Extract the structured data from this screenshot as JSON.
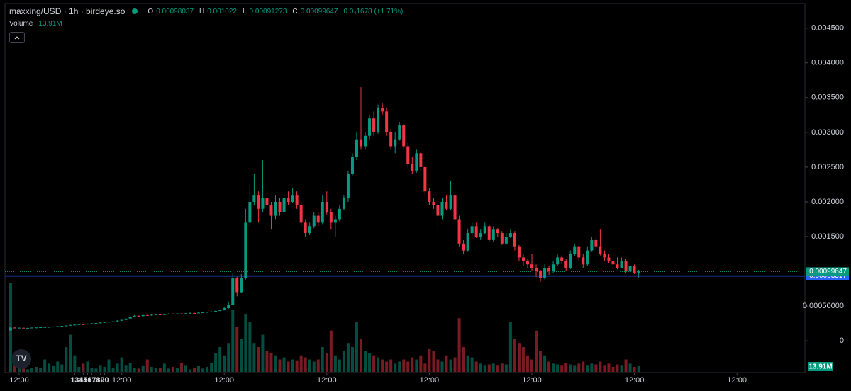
{
  "chart_data": {
    "type": "candlestick",
    "title": "maxxing/USD · 1h · birdeye.so",
    "legend_labels": {
      "open": "O",
      "high": "H",
      "low": "L",
      "close": "C"
    },
    "change_label": "0.0₄1678 (+1.71%)",
    "volume_title": "Volume",
    "volume_label": "13.91M",
    "up_color": "#089981",
    "down_color": "#f23645",
    "x": [
      -2,
      -1,
      0,
      1,
      2,
      3,
      4,
      5,
      6,
      7,
      8,
      9,
      10,
      11,
      12,
      13,
      14,
      15,
      16,
      17,
      18,
      19,
      20,
      21,
      22,
      23,
      24,
      25,
      26,
      27,
      28,
      29,
      30,
      31,
      32,
      33,
      34,
      35,
      36,
      37,
      38,
      39,
      40,
      41,
      42,
      43,
      44,
      45,
      46,
      47,
      48,
      49,
      50,
      51,
      52,
      53,
      54,
      55,
      56,
      57,
      58,
      59,
      60,
      61,
      62,
      63,
      64,
      65,
      66,
      67,
      68,
      69,
      70,
      71,
      72,
      73,
      74,
      75,
      76,
      77,
      78,
      79,
      80,
      81,
      82,
      83,
      84,
      85,
      86,
      87,
      88,
      89,
      90,
      91,
      92,
      93,
      94,
      95,
      96,
      97,
      98,
      99,
      100,
      101,
      102,
      103,
      104,
      105,
      106,
      107,
      108,
      109,
      110,
      111,
      112,
      113,
      114,
      115,
      116,
      117,
      118,
      119,
      120,
      121,
      122,
      123,
      124,
      125,
      126,
      127,
      128,
      129,
      130,
      131,
      132,
      133,
      134,
      135,
      136,
      137,
      138,
      139,
      140,
      141,
      142,
      143,
      144,
      145
    ],
    "open": [
      0.00015,
      0.00019,
      0.000185,
      0.000188,
      0.000184,
      0.000186,
      0.00019,
      0.000192,
      0.000195,
      0.000198,
      0.0002,
      0.000205,
      0.00021,
      0.000215,
      0.00022,
      0.000228,
      0.000232,
      0.000238,
      0.000235,
      0.000245,
      0.00025,
      0.000255,
      0.000262,
      0.00027,
      0.000275,
      0.00028,
      0.00029,
      0.0003,
      0.00032,
      0.000345,
      0.00036,
      0.000355,
      0.00037,
      0.000365,
      0.000375,
      0.00038,
      0.000372,
      0.000385,
      0.00039,
      0.000385,
      0.000392,
      0.000388,
      0.000395,
      0.0004,
      0.000398,
      0.000405,
      0.00041,
      0.000415,
      0.00042,
      0.00043,
      0.00044,
      0.00047,
      0.00052,
      0.0009,
      0.0007,
      0.0009,
      0.0017,
      0.002,
      0.0021,
      0.0019,
      0.00205,
      0.00195,
      0.0018,
      0.002,
      0.00185,
      0.00205,
      0.002,
      0.0021,
      0.00195,
      0.0017,
      0.00155,
      0.00165,
      0.0018,
      0.0017,
      0.002,
      0.00185,
      0.0017,
      0.00175,
      0.0019,
      0.00205,
      0.0024,
      0.00265,
      0.0029,
      0.0028,
      0.00295,
      0.0032,
      0.003,
      0.00335,
      0.0033,
      0.003,
      0.0028,
      0.0029,
      0.0031,
      0.0028,
      0.00255,
      0.00245,
      0.0027,
      0.0025,
      0.00215,
      0.002,
      0.00195,
      0.0018,
      0.002,
      0.0019,
      0.0021,
      0.00175,
      0.0014,
      0.0013,
      0.00155,
      0.00165,
      0.0015,
      0.00155,
      0.00165,
      0.00145,
      0.0016,
      0.00155,
      0.0014,
      0.0015,
      0.00155,
      0.00135,
      0.0012,
      0.00115,
      0.0011,
      0.00105,
      0.001,
      0.0009,
      0.00105,
      0.001,
      0.0011,
      0.0012,
      0.00115,
      0.00105,
      0.00125,
      0.00135,
      0.0012,
      0.0011,
      0.0013,
      0.00145,
      0.00135,
      0.00125,
      0.0012,
      0.00115,
      0.0011,
      0.00105,
      0.00115,
      0.001,
      0.00108,
      0.00098037
    ],
    "high": [
      0.0002,
      0.000195,
      0.000192,
      0.00019,
      0.000189,
      0.000193,
      0.000195,
      0.000198,
      0.0002,
      0.000204,
      0.000208,
      0.000212,
      0.000218,
      0.000224,
      0.000232,
      0.000236,
      0.000242,
      0.00024,
      0.000248,
      0.000255,
      0.000258,
      0.000266,
      0.000275,
      0.00028,
      0.000285,
      0.000295,
      0.000305,
      0.000326,
      0.00035,
      0.000372,
      0.000366,
      0.000376,
      0.000374,
      0.00038,
      0.000386,
      0.000384,
      0.00039,
      0.000396,
      0.000394,
      0.000398,
      0.000395,
      0.0004,
      0.000406,
      0.000404,
      0.00041,
      0.000414,
      0.00042,
      0.000426,
      0.000436,
      0.000448,
      0.00048,
      0.00056,
      0.00098,
      0.00092,
      0.00096,
      0.0019,
      0.00225,
      0.0024,
      0.00215,
      0.0026,
      0.00225,
      0.002,
      0.0021,
      0.00205,
      0.0021,
      0.00215,
      0.0022,
      0.00215,
      0.002,
      0.00175,
      0.0017,
      0.00185,
      0.00185,
      0.0021,
      0.00215,
      0.0019,
      0.0018,
      0.00195,
      0.0021,
      0.00245,
      0.0027,
      0.003,
      0.00365,
      0.003,
      0.00325,
      0.0033,
      0.0034,
      0.00342,
      0.00335,
      0.00305,
      0.003,
      0.00315,
      0.00312,
      0.00285,
      0.00265,
      0.00275,
      0.00272,
      0.00252,
      0.0022,
      0.00205,
      0.002,
      0.00205,
      0.0021,
      0.0023,
      0.00215,
      0.0018,
      0.00145,
      0.0016,
      0.0017,
      0.0017,
      0.0016,
      0.0017,
      0.00168,
      0.00165,
      0.00162,
      0.00158,
      0.00155,
      0.0016,
      0.00158,
      0.00138,
      0.00125,
      0.00118,
      0.00125,
      0.0011,
      0.00102,
      0.0011,
      0.00108,
      0.00115,
      0.00125,
      0.00123,
      0.00118,
      0.0013,
      0.0014,
      0.00138,
      0.00125,
      0.00135,
      0.0015,
      0.0015,
      0.0016,
      0.0013,
      0.00125,
      0.00118,
      0.0012,
      0.0012,
      0.00118,
      0.0011,
      0.0011,
      0.001022
    ],
    "low": [
      0.00014,
      0.00018,
      0.000182,
      0.00018,
      0.000182,
      0.000184,
      0.000188,
      0.00019,
      0.000193,
      0.000195,
      0.000198,
      0.000203,
      0.000208,
      0.000212,
      0.000218,
      0.000224,
      0.00023,
      0.00023,
      0.000233,
      0.000242,
      0.000248,
      0.000252,
      0.000258,
      0.000266,
      0.000272,
      0.000276,
      0.000286,
      0.000296,
      0.000316,
      0.00034,
      0.000348,
      0.00035,
      0.000358,
      0.00036,
      0.00037,
      0.000366,
      0.000368,
      0.00038,
      0.00038,
      0.000382,
      0.000383,
      0.000385,
      0.000392,
      0.000392,
      0.000395,
      0.000402,
      0.000406,
      0.000412,
      0.000416,
      0.000426,
      0.000436,
      0.000462,
      0.00051,
      0.00064,
      0.00069,
      0.00088,
      0.00165,
      0.00195,
      0.0017,
      0.00185,
      0.0019,
      0.0016,
      0.00175,
      0.0018,
      0.00182,
      0.00195,
      0.00198,
      0.0019,
      0.00165,
      0.0015,
      0.00152,
      0.00162,
      0.00165,
      0.00168,
      0.00182,
      0.0016,
      0.0015,
      0.00172,
      0.00188,
      0.002,
      0.00238,
      0.0026,
      0.00275,
      0.00275,
      0.0029,
      0.00295,
      0.00298,
      0.00325,
      0.00295,
      0.00275,
      0.0027,
      0.00288,
      0.00275,
      0.0025,
      0.0024,
      0.00242,
      0.00245,
      0.0021,
      0.00195,
      0.0019,
      0.0016,
      0.00175,
      0.00188,
      0.00188,
      0.0017,
      0.00135,
      0.00125,
      0.00128,
      0.0015,
      0.00148,
      0.00145,
      0.00153,
      0.00142,
      0.00143,
      0.0015,
      0.00138,
      0.00138,
      0.00148,
      0.0013,
      0.00115,
      0.00108,
      0.00105,
      0.001,
      0.00092,
      0.00085,
      0.00088,
      0.00095,
      0.00098,
      0.00108,
      0.0011,
      0.001,
      0.00103,
      0.00122,
      0.00115,
      0.00105,
      0.00108,
      0.00128,
      0.0013,
      0.00123,
      0.00115,
      0.00112,
      0.00105,
      0.00103,
      0.00104,
      0.00098,
      0.00099,
      0.00096,
      0.00091273
    ],
    "close": [
      0.00019,
      0.000185,
      0.000188,
      0.000184,
      0.000186,
      0.00019,
      0.000192,
      0.000195,
      0.000198,
      0.0002,
      0.000205,
      0.00021,
      0.000215,
      0.00022,
      0.000228,
      0.000232,
      0.000238,
      0.000235,
      0.000245,
      0.00025,
      0.000255,
      0.000262,
      0.00027,
      0.000275,
      0.00028,
      0.00029,
      0.0003,
      0.00032,
      0.000345,
      0.00036,
      0.000355,
      0.00037,
      0.000365,
      0.000375,
      0.00038,
      0.000372,
      0.000385,
      0.00039,
      0.000385,
      0.000392,
      0.000388,
      0.000395,
      0.0004,
      0.000398,
      0.000405,
      0.00041,
      0.000415,
      0.00042,
      0.00043,
      0.00044,
      0.00047,
      0.00052,
      0.0009,
      0.0007,
      0.0009,
      0.0017,
      0.002,
      0.0021,
      0.0019,
      0.00205,
      0.00195,
      0.0018,
      0.002,
      0.00185,
      0.00205,
      0.002,
      0.0021,
      0.00195,
      0.0017,
      0.00155,
      0.00165,
      0.0018,
      0.0017,
      0.002,
      0.00185,
      0.0017,
      0.00175,
      0.0019,
      0.00205,
      0.0024,
      0.00265,
      0.0029,
      0.0028,
      0.00295,
      0.0032,
      0.003,
      0.00335,
      0.0033,
      0.003,
      0.0028,
      0.0029,
      0.0031,
      0.0028,
      0.00255,
      0.00245,
      0.0027,
      0.0025,
      0.00215,
      0.002,
      0.00195,
      0.0018,
      0.002,
      0.0019,
      0.0021,
      0.00175,
      0.0014,
      0.0013,
      0.00155,
      0.00165,
      0.0015,
      0.00155,
      0.00165,
      0.00145,
      0.0016,
      0.00155,
      0.0014,
      0.0015,
      0.00155,
      0.00135,
      0.0012,
      0.00115,
      0.0011,
      0.00105,
      0.001,
      0.0009,
      0.00105,
      0.001,
      0.0011,
      0.0012,
      0.00115,
      0.00105,
      0.00125,
      0.00135,
      0.0012,
      0.0011,
      0.0013,
      0.00145,
      0.00135,
      0.00125,
      0.0012,
      0.00115,
      0.0011,
      0.00105,
      0.00115,
      0.001,
      0.00108,
      0.00098,
      0.00099647
    ],
    "volume": [
      215000000,
      40000000,
      15000000,
      8000000,
      6000000,
      10000000,
      12000000,
      9000000,
      30000000,
      20000000,
      14000000,
      25000000,
      18000000,
      60000000,
      90000000,
      40000000,
      12000000,
      20000000,
      25000000,
      10000000,
      8000000,
      15000000,
      12000000,
      30000000,
      10000000,
      20000000,
      35000000,
      15000000,
      22000000,
      10000000,
      8000000,
      14000000,
      30000000,
      12000000,
      9000000,
      10000000,
      20000000,
      8000000,
      12000000,
      10000000,
      22000000,
      15000000,
      6000000,
      10000000,
      14000000,
      8000000,
      12000000,
      22000000,
      45000000,
      60000000,
      40000000,
      70000000,
      150000000,
      110000000,
      80000000,
      140000000,
      120000000,
      70000000,
      60000000,
      90000000,
      50000000,
      45000000,
      40000000,
      30000000,
      35000000,
      25000000,
      30000000,
      28000000,
      40000000,
      35000000,
      30000000,
      25000000,
      30000000,
      60000000,
      45000000,
      100000000,
      40000000,
      30000000,
      50000000,
      70000000,
      60000000,
      120000000,
      80000000,
      50000000,
      45000000,
      40000000,
      35000000,
      30000000,
      25000000,
      30000000,
      20000000,
      25000000,
      30000000,
      25000000,
      35000000,
      30000000,
      40000000,
      20000000,
      55000000,
      50000000,
      30000000,
      25000000,
      40000000,
      30000000,
      35000000,
      130000000,
      60000000,
      40000000,
      35000000,
      25000000,
      20000000,
      15000000,
      18000000,
      20000000,
      15000000,
      20000000,
      18000000,
      120000000,
      80000000,
      70000000,
      60000000,
      40000000,
      30000000,
      100000000,
      50000000,
      40000000,
      25000000,
      20000000,
      18000000,
      15000000,
      22000000,
      18000000,
      15000000,
      20000000,
      25000000,
      15000000,
      20000000,
      18000000,
      25000000,
      15000000,
      20000000,
      12000000,
      18000000,
      15000000,
      30000000,
      20000000,
      12000000,
      13910000
    ],
    "volume_ylim": [
      0,
      230000000
    ],
    "price_lines": [
      {
        "value": 0.00093317,
        "color": "#2962ff"
      }
    ],
    "xlim": [
      -3.32,
      183.9
    ],
    "xticks": [
      {
        "value": 0,
        "label": "12:00"
      },
      13,
      {
        "value": 24,
        "label": "12:00"
      },
      14,
      {
        "value": 48,
        "label": "12:00"
      },
      15,
      {
        "value": 72,
        "label": "12:00"
      },
      16,
      {
        "value": 96,
        "label": "12:00"
      },
      17,
      {
        "value": 120,
        "label": "12:00"
      },
      18,
      {
        "value": 144,
        "label": "12:00"
      },
      19,
      {
        "value": 168,
        "label": "12:00"
      },
      20
    ],
    "ylim": [
      -0.0006,
      0.00465
    ],
    "yticks": [
      0,
      {
        "value": 0.0005,
        "label": "0.00050000"
      },
      {
        "value": 0.0015,
        "label": "0.001500"
      },
      {
        "value": 0.002,
        "label": "0.002000"
      },
      {
        "value": 0.0025,
        "label": "0.002500"
      },
      {
        "value": 0.003,
        "label": "0.003000"
      },
      {
        "value": 0.0035,
        "label": "0.003500"
      },
      {
        "value": 0.004,
        "label": "0.004000"
      },
      {
        "value": 0.0045,
        "label": "0.004500"
      }
    ],
    "grid": false
  }
}
